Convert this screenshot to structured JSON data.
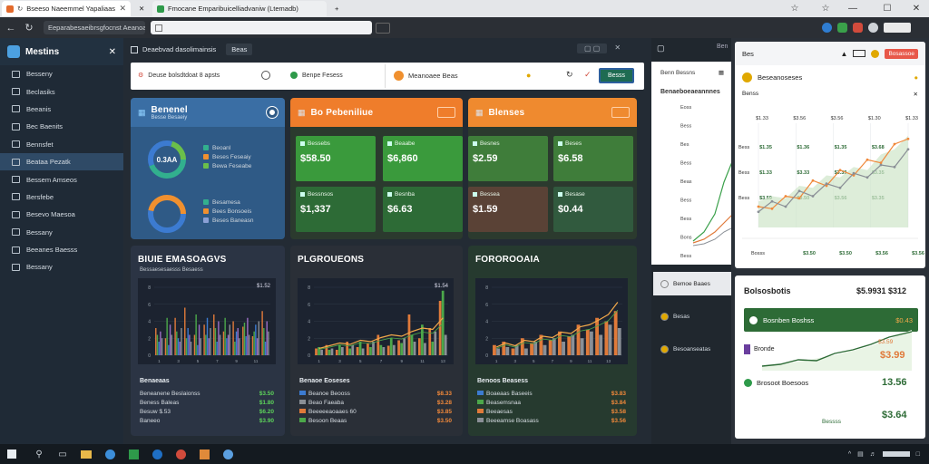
{
  "browser": {
    "tabs": [
      {
        "title": "Bseeso Naeemmel Yapaliaas",
        "active": true
      },
      {
        "title": "Fmocane Emparibuicelliadvaniw (Ltemadb)",
        "active": false
      }
    ],
    "url": "Eeparabesaeibrsgfocnst Aeanoa"
  },
  "sidebar": {
    "title": "Mestins",
    "items": [
      {
        "label": "Besseny"
      },
      {
        "label": "Beclasiks"
      },
      {
        "label": "Beeanis"
      },
      {
        "label": "Bec Baenits"
      },
      {
        "label": "Bennsfet"
      },
      {
        "label": "Beataa Pezatk"
      },
      {
        "label": "Bessem Amseos"
      },
      {
        "label": "Bersfebe"
      },
      {
        "label": "Besevo Maesoa"
      },
      {
        "label": "Bessany"
      },
      {
        "label": "Beeanes Baesss"
      },
      {
        "label": "Bessany"
      }
    ],
    "active_index": 5
  },
  "main": {
    "title": "Deaebvad dasolimainsis",
    "header_btn": "Beas",
    "toolbar": {
      "left_text": "Deuse bolsdtdoat 8 apsts",
      "mid_text": "Benpe Fesess",
      "right_text": "Meanoaee Beas",
      "btn": "Besss"
    },
    "cards": [
      {
        "title": "Benenel"
      },
      {
        "title": "Bo Pebeniliue"
      },
      {
        "title": "Blenses"
      }
    ],
    "donuts": {
      "title_small": "Besse Besaeiy",
      "value": "0.3AA",
      "legend1": [
        {
          "label": "Beoanl",
          "color": "#32b08e"
        },
        {
          "label": "Beses Feseaiy",
          "color": "#f0902f"
        },
        {
          "label": "Bewa Feseabe",
          "color": "#6bbf4a"
        }
      ],
      "legend2": [
        {
          "label": "Besamesa",
          "color": "#32b08e"
        },
        {
          "label": "Bees Bonsoeis",
          "color": "#f0902f"
        },
        {
          "label": "Beses Baneasn",
          "color": "#8aa0d6"
        }
      ]
    },
    "kpis": [
      {
        "label": "Bessebs",
        "value": "$58.50",
        "color": "#3a9a3c"
      },
      {
        "label": "Beaabe",
        "value": "$6,860",
        "color": "#3a9a3c"
      },
      {
        "label": "Besnes",
        "value": "$2.59",
        "color": "#3f7d3a"
      },
      {
        "label": "Beses",
        "value": "$6.58",
        "color": "#3f7d3a"
      },
      {
        "label": "Bessnsos",
        "value": "$1,337",
        "color": "#2d6b36"
      },
      {
        "label": "Besnba",
        "value": "$6.63",
        "color": "#2d6b36"
      },
      {
        "label": "Bessea",
        "value": "$1.59",
        "color": "#5a4236"
      },
      {
        "label": "Besase",
        "value": "$0.44",
        "color": "#315a3e"
      }
    ],
    "panels": [
      {
        "title": "BIUIE EMASOAGVS",
        "subtitle": "Bessaesesaesss Besaess",
        "corner": "$1.52",
        "foot_title": "Benaeaas",
        "rows": [
          {
            "label": "Beneanene Beslaionss",
            "value": "$3.50",
            "cls": "gv"
          },
          {
            "label": "Beness Baleas",
            "value": "$1.80",
            "cls": "gv"
          },
          {
            "label": "Besuw $.53",
            "value": "$6.20",
            "cls": "gv"
          },
          {
            "label": "Baneeo",
            "value": "$3.90",
            "cls": "gv"
          }
        ]
      },
      {
        "title": "PLGROUEONS",
        "subtitle": "",
        "corner": "$1.54",
        "foot_title": "Benaoe Eoseses",
        "rows": [
          {
            "label": "Beanoe Beooss",
            "value": "$8.33",
            "cls": "ov",
            "sw": "#3c7bd1"
          },
          {
            "label": "Beao Faeaba",
            "value": "$3.28",
            "cls": "ov",
            "sw": "#8a8f96"
          },
          {
            "label": "Beeeeeaoaaes 60",
            "value": "$3.85",
            "cls": "ov",
            "sw": "#e07a3a"
          },
          {
            "label": "Besoon Beaas",
            "value": "$3.50",
            "cls": "ov",
            "sw": "#4ca84a"
          }
        ]
      },
      {
        "title": "FOROROOAIA",
        "subtitle": "",
        "corner": "",
        "foot_title": "Benoos Beasess",
        "rows": [
          {
            "label": "Boaeaas Baseeis",
            "value": "$3.83",
            "cls": "ov",
            "sw": "#3c7bd1"
          },
          {
            "label": "Beasemsnaa",
            "value": "$3.84",
            "cls": "ov",
            "sw": "#4ca84a"
          },
          {
            "label": "Beeaesas",
            "value": "$3.58",
            "cls": "ov",
            "sw": "#e07a3a"
          },
          {
            "label": "Beeeamse Boasass",
            "value": "$3.56",
            "cls": "ov",
            "sw": "#8a8f96"
          }
        ]
      }
    ]
  },
  "right_panel": {
    "title": "Ben",
    "sub": "Benn Bessns",
    "chart_title": "Benaeboeaeannnes",
    "ylabels": [
      "Eoss",
      "Bess",
      "Bes",
      "Bess",
      "Beas",
      "Bess",
      "Bess",
      "Bons",
      "Bess"
    ],
    "items": [
      {
        "label": "Bemoe Baaes"
      },
      {
        "label": "Besas"
      },
      {
        "label": "Besoanseatas"
      }
    ]
  },
  "overlay": {
    "title": "Bes",
    "badge": "Bosassoe",
    "sub_title": "Beseanoseses",
    "chart_head": "Benss",
    "cols": [
      "$1.33",
      "$3.56",
      "$3.56",
      "$1.30",
      "$1.33"
    ],
    "rows": [
      {
        "label": "Bess",
        "values": [
          "$1.35",
          "$1.36",
          "$1.35",
          "$3.68"
        ]
      },
      {
        "label": "Bess",
        "values": [
          "$1.33",
          "$3.33",
          "$3.33",
          "$3.35"
        ]
      },
      {
        "label": "Bess",
        "values": [
          "$3.59",
          "$3.50",
          "$3.56",
          "$3.35"
        ]
      }
    ],
    "bottom_row": {
      "label": "Bosss",
      "values": [
        "$3.50",
        "$3.50",
        "$3.56",
        "$3.56"
      ]
    },
    "summary": {
      "title": "Bolsosbotis",
      "total": "$5.9931 $312",
      "green_label": "Bosnben Boshss",
      "green_value": "$0.43",
      "row1_label": "Bronde",
      "row1_value": "$3.99",
      "row1_sub": "$3.59",
      "row2_label": "Brosoot Boesoos",
      "row2_value": "13.56",
      "row3_label": "Bessss",
      "row3_value": "$3.64"
    }
  },
  "chart_data": [
    {
      "type": "bar",
      "series": [
        {
          "name": "",
          "values": [
            40,
            25,
            55,
            70,
            30,
            45,
            60,
            35,
            50,
            42,
            28,
            65
          ],
          "color": "#e07a3a"
        },
        {
          "name": "",
          "values": [
            30,
            55,
            35,
            25,
            60,
            30,
            40,
            55,
            20,
            48,
            35,
            40
          ],
          "color": "#4ca84a"
        },
        {
          "name": "",
          "values": [
            20,
            15,
            25,
            40,
            15,
            55,
            20,
            25,
            35,
            28,
            45,
            20
          ],
          "color": "#3c7bd1"
        },
        {
          "name": "",
          "values": [
            35,
            45,
            20,
            30,
            45,
            25,
            50,
            30,
            40,
            55,
            25,
            50
          ],
          "color": "#9c6fc5"
        },
        {
          "name": "",
          "values": [
            25,
            30,
            40,
            20,
            25,
            40,
            30,
            45,
            25,
            30,
            50,
            35
          ],
          "color": "#8a8f96"
        }
      ],
      "x": [
        "1",
        "2",
        "3",
        "4",
        "5",
        "6",
        "7",
        "8",
        "9",
        "10",
        "11",
        "12"
      ],
      "ylim": [
        0,
        100
      ]
    },
    {
      "type": "bar",
      "series": [
        {
          "name": "",
          "values": [
            10,
            15,
            8,
            20,
            12,
            18,
            30,
            14,
            22,
            60,
            25,
            40,
            80
          ],
          "color": "#e07a3a"
        },
        {
          "name": "",
          "values": [
            12,
            8,
            15,
            10,
            20,
            12,
            15,
            25,
            18,
            30,
            45,
            20,
            95
          ],
          "color": "#4ca84a"
        },
        {
          "name": "",
          "values": [
            8,
            10,
            12,
            15,
            10,
            20,
            12,
            15,
            25,
            20,
            18,
            35,
            30
          ],
          "color": "#8a8f96"
        }
      ],
      "line": [
        10,
        14,
        18,
        16,
        22,
        20,
        26,
        30,
        28,
        35,
        40,
        38,
        55
      ],
      "x": [
        "1",
        "2",
        "3",
        "4",
        "5",
        "6",
        "7",
        "8",
        "9",
        "10",
        "11",
        "12",
        "13"
      ],
      "ylim": [
        0,
        100
      ]
    },
    {
      "type": "bar",
      "series": [
        {
          "name": "",
          "values": [
            15,
            20,
            10,
            25,
            18,
            30,
            22,
            35,
            28,
            45,
            38,
            55,
            50,
            65
          ],
          "color": "#e07a3a"
        },
        {
          "name": "",
          "values": [
            10,
            12,
            15,
            10,
            20,
            15,
            25,
            20,
            30,
            25,
            35,
            30,
            45,
            40
          ],
          "color": "#8a8f96"
        }
      ],
      "line": [
        12,
        18,
        14,
        22,
        20,
        28,
        26,
        34,
        32,
        42,
        45,
        52,
        60,
        78
      ],
      "x": [
        "1",
        "2",
        "3",
        "4",
        "5",
        "6",
        "7",
        "8",
        "9",
        "10",
        "11",
        "12",
        "13",
        "14"
      ],
      "ylim": [
        0,
        100
      ]
    },
    {
      "type": "line",
      "series": [
        {
          "name": "",
          "values": [
            20,
            18,
            30,
            28,
            45,
            40,
            55,
            50,
            65,
            62,
            80,
            85
          ],
          "color": "#f0883a"
        },
        {
          "name": "",
          "values": [
            15,
            25,
            20,
            35,
            30,
            42,
            38,
            52,
            48,
            60,
            58,
            75
          ],
          "color": "#8a8f96"
        }
      ],
      "area": [
        25,
        30,
        28,
        40,
        38,
        50,
        48,
        58,
        55,
        70,
        75,
        88
      ],
      "ylim": [
        0,
        100
      ]
    }
  ]
}
